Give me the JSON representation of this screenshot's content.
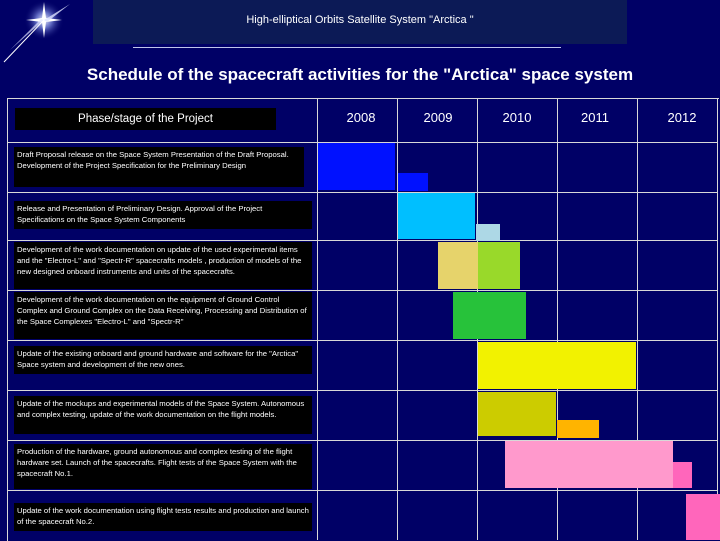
{
  "header": {
    "title": "High-elliptical Orbits Satellite System \"Arctica \""
  },
  "main_title": "Schedule of the spacecraft activities for the \"Arctica\" space system",
  "table": {
    "phase_header": "Phase/stage of the Project",
    "years": [
      "2008",
      "2009",
      "2010",
      "2011",
      "2012"
    ]
  },
  "tasks": [
    "Draft Proposal release on the Space System Presentation of the Draft Proposal. Development of the Project Specification for the Preliminary Design",
    "Release and Presentation of Preliminary Design. Approval of the Project Specifications on the Space System Components",
    "Development of the work documentation on update of the used experimental items and the \"Electro-L\" and \"Spectr-R\" spacecrafts models , production of models of the new designed onboard instruments and units of the spacecrafts.",
    "Development of the work documentation on the equipment of Ground Control Complex and Ground Complex on the Data Receiving, Processing and Distribution of the Space Complexes \"Electro-L\" and \"Spectr-R\"",
    "Update of the existing onboard and ground hardware and software for the \"Arctica\" Space system and development of the new ones.",
    "Update of the mockups and experimental models of the Space System. Autonomous and complex testing, update of the work documentation on the flight models.",
    "Production of the hardware, ground autonomous and complex testing of the flight hardware set. Launch of the spacecrafts. Flight tests of the Space System with the spacecraft No.1.",
    "Update of the work documentation using flight tests results and production and launch of the spacecraft No.2."
  ],
  "colors": {
    "background": "#000066",
    "blue": "#0011ff",
    "sky": "#00bfff",
    "light_sky": "#add8e6",
    "khaki": "#e6d36b",
    "lime": "#99d92a",
    "green": "#27c23a",
    "yellow": "#f2f200",
    "olive": "#cccc00",
    "orange": "#ffb400",
    "pink": "#ff99cc",
    "magenta": "#ff66bb"
  }
}
